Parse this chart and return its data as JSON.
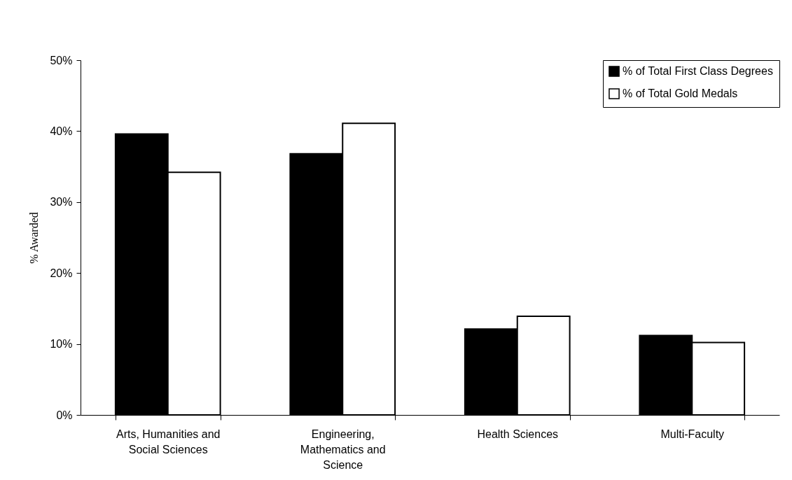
{
  "chart_data": {
    "type": "bar",
    "ylabel": "% Awarded",
    "categories": [
      "Arts, Humanities and Social Sciences",
      "Engineering, Mathematics and Science",
      "Health Sciences",
      "Multi-Faculty"
    ],
    "series": [
      {
        "name": "% of Total First Class Degrees",
        "color": "#000000",
        "values": [
          39.6,
          36.8,
          12.1,
          11.2
        ]
      },
      {
        "name": "% of Total Gold Medals",
        "color": "#ffffff",
        "values": [
          34.2,
          41.1,
          13.9,
          10.2
        ]
      }
    ],
    "ylim": [
      0,
      50
    ],
    "yticks": [
      {
        "value": 0,
        "label": "0%"
      },
      {
        "value": 10,
        "label": "10%"
      },
      {
        "value": 20,
        "label": "20%"
      },
      {
        "value": 30,
        "label": "30%"
      },
      {
        "value": 40,
        "label": "40%"
      },
      {
        "value": 50,
        "label": "50%"
      }
    ],
    "grid": false,
    "legend": "top right"
  }
}
